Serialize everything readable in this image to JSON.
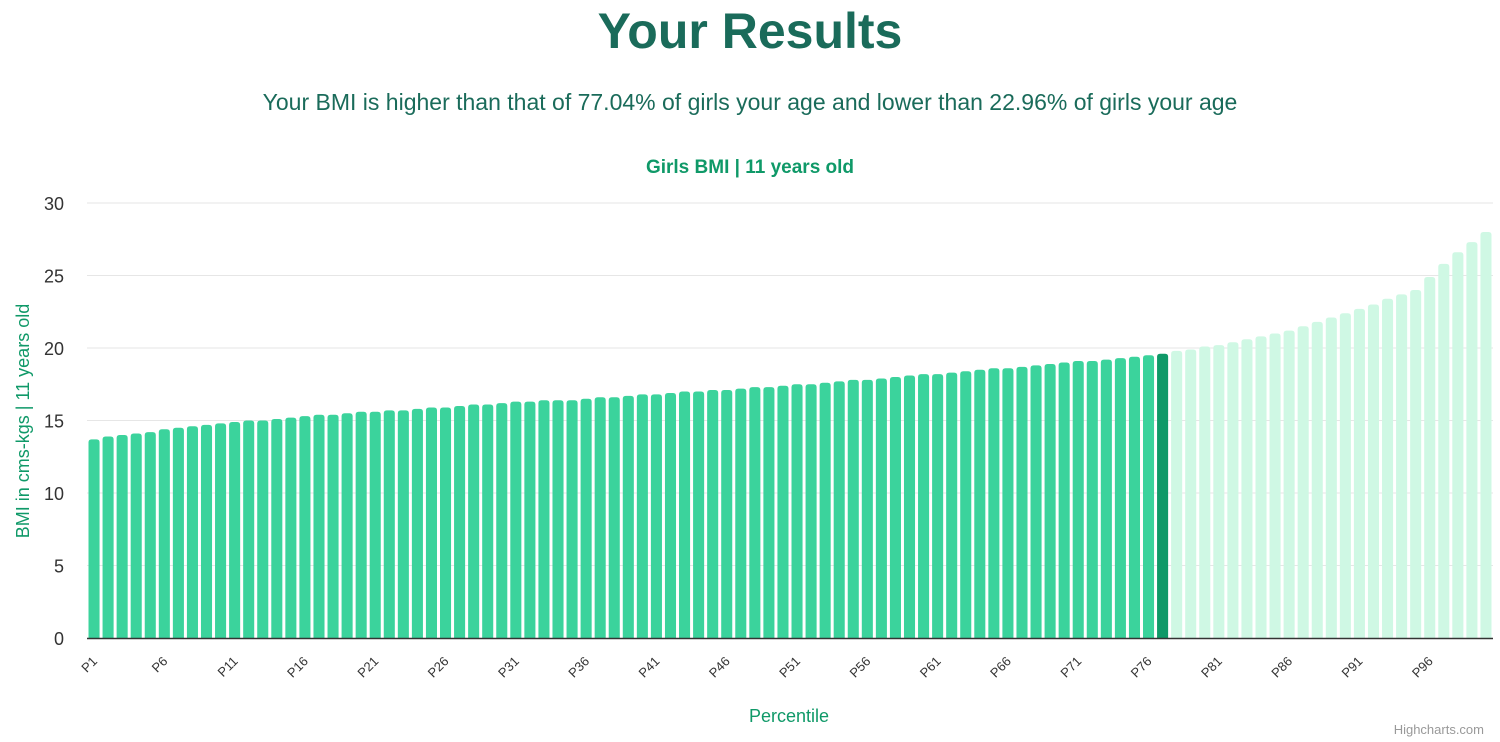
{
  "page": {
    "heading": "Your Results",
    "summary": "Your BMI is higher than that of 77.04% of girls your age and lower than 22.96% of girls your age",
    "credit": "Highcharts.com"
  },
  "colors": {
    "heading": "#1a6b5a",
    "chart_title": "#0f9968",
    "bar": "#3bd39c",
    "bar_highlight": "#0f9968",
    "bar_light": "#cff8e4",
    "grid": "#e6e6e6",
    "axis": "#333333"
  },
  "chart_data": {
    "type": "bar",
    "title": "Girls BMI | 11 years old",
    "xlabel": "Percentile",
    "ylabel": "BMI in cms-kgs | 11 years old",
    "ylim": [
      0,
      30
    ],
    "yticks": [
      0,
      5,
      10,
      15,
      20,
      25,
      30
    ],
    "grid": true,
    "highlight_category": "P77",
    "x_tick_labels": [
      "P1",
      "P6",
      "P11",
      "P16",
      "P21",
      "P26",
      "P31",
      "P36",
      "P41",
      "P46",
      "P51",
      "P56",
      "P61",
      "P66",
      "P71",
      "P76",
      "P81",
      "P86",
      "P91",
      "P96"
    ],
    "categories": [
      "P1",
      "P2",
      "P3",
      "P4",
      "P5",
      "P6",
      "P7",
      "P8",
      "P9",
      "P10",
      "P11",
      "P12",
      "P13",
      "P14",
      "P15",
      "P16",
      "P17",
      "P18",
      "P19",
      "P20",
      "P21",
      "P22",
      "P23",
      "P24",
      "P25",
      "P26",
      "P27",
      "P28",
      "P29",
      "P30",
      "P31",
      "P32",
      "P33",
      "P34",
      "P35",
      "P36",
      "P37",
      "P38",
      "P39",
      "P40",
      "P41",
      "P42",
      "P43",
      "P44",
      "P45",
      "P46",
      "P47",
      "P48",
      "P49",
      "P50",
      "P51",
      "P52",
      "P53",
      "P54",
      "P55",
      "P56",
      "P57",
      "P58",
      "P59",
      "P60",
      "P61",
      "P62",
      "P63",
      "P64",
      "P65",
      "P66",
      "P67",
      "P68",
      "P69",
      "P70",
      "P71",
      "P72",
      "P73",
      "P74",
      "P75",
      "P76",
      "P77",
      "P78",
      "P79",
      "P80",
      "P81",
      "P82",
      "P83",
      "P84",
      "P85",
      "P86",
      "P87",
      "P88",
      "P89",
      "P90",
      "P91",
      "P92",
      "P93",
      "P94",
      "P95",
      "P96",
      "P97",
      "P98",
      "P99",
      "P100"
    ],
    "values": [
      13.7,
      13.9,
      14.0,
      14.1,
      14.2,
      14.4,
      14.5,
      14.6,
      14.7,
      14.8,
      14.9,
      15.0,
      15.0,
      15.1,
      15.2,
      15.3,
      15.4,
      15.4,
      15.5,
      15.6,
      15.6,
      15.7,
      15.7,
      15.8,
      15.9,
      15.9,
      16.0,
      16.1,
      16.1,
      16.2,
      16.3,
      16.3,
      16.4,
      16.4,
      16.4,
      16.5,
      16.6,
      16.6,
      16.7,
      16.8,
      16.8,
      16.9,
      17.0,
      17.0,
      17.1,
      17.1,
      17.2,
      17.3,
      17.3,
      17.4,
      17.5,
      17.5,
      17.6,
      17.7,
      17.8,
      17.8,
      17.9,
      18.0,
      18.1,
      18.2,
      18.2,
      18.3,
      18.4,
      18.5,
      18.6,
      18.6,
      18.7,
      18.8,
      18.9,
      19.0,
      19.1,
      19.1,
      19.2,
      19.3,
      19.4,
      19.5,
      19.6,
      19.8,
      19.9,
      20.1,
      20.2,
      20.4,
      20.6,
      20.8,
      21.0,
      21.2,
      21.5,
      21.8,
      22.1,
      22.4,
      22.7,
      23.0,
      23.4,
      23.7,
      24.0,
      24.9,
      25.8,
      26.6,
      27.3,
      28.0
    ]
  }
}
